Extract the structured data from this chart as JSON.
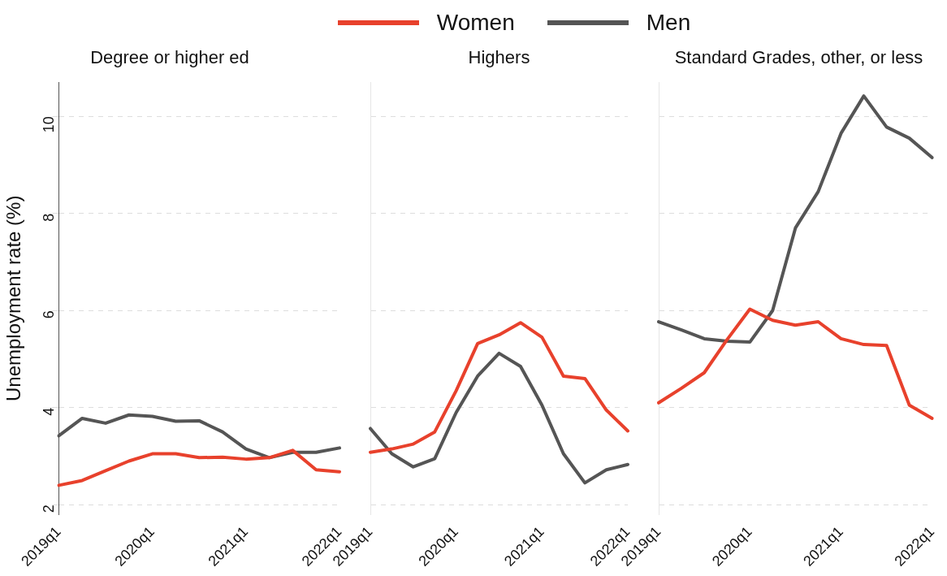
{
  "chart_data": [
    {
      "type": "line",
      "title": "Degree or higher ed",
      "ylabel": "Unemployment rate (%)",
      "categories": [
        "2019q1",
        null,
        null,
        null,
        "2020q1",
        null,
        null,
        null,
        "2021q1",
        null,
        null,
        null,
        "2022q1"
      ],
      "ylim": [
        1.8,
        10.7
      ],
      "yticks": [
        2,
        4,
        6,
        8,
        10
      ],
      "grid": "y",
      "legend": "top",
      "series": [
        {
          "name": "Women",
          "color": "#e8412c",
          "values": [
            2.4,
            2.5,
            2.7,
            2.9,
            3.05,
            3.05,
            2.97,
            2.98,
            2.94,
            2.97,
            3.12,
            2.72,
            2.68
          ]
        },
        {
          "name": "Men",
          "color": "#555555",
          "values": [
            3.42,
            3.78,
            3.68,
            3.85,
            3.82,
            3.72,
            3.73,
            3.5,
            3.15,
            2.97,
            3.08,
            3.08,
            3.17
          ]
        }
      ]
    },
    {
      "type": "line",
      "title": "Highers",
      "categories": [
        "2019q1",
        null,
        null,
        null,
        "2020q1",
        null,
        null,
        null,
        "2021q1",
        null,
        null,
        null,
        "2022q1"
      ],
      "ylim": [
        1.8,
        10.7
      ],
      "yticks": [
        2,
        4,
        6,
        8,
        10
      ],
      "grid": "y",
      "tick_labels": "x",
      "series": [
        {
          "color": "#e8412c",
          "values": [
            3.08,
            3.15,
            3.25,
            3.5,
            4.35,
            5.32,
            5.5,
            5.75,
            5.45,
            4.65,
            4.6,
            3.95,
            3.52
          ]
        },
        {
          "color": "#555555",
          "values": [
            3.57,
            3.05,
            2.78,
            2.95,
            3.9,
            4.65,
            5.12,
            4.85,
            4.05,
            3.05,
            2.45,
            2.72,
            2.83
          ]
        }
      ]
    },
    {
      "type": "line",
      "title": "Standard Grades, other, or less",
      "categories": [
        "2019q1",
        null,
        null,
        null,
        "2020q1",
        null,
        null,
        null,
        "2021q1",
        null,
        null,
        null,
        "2022q1"
      ],
      "ylim": [
        1.8,
        10.7
      ],
      "yticks": [
        2,
        4,
        6,
        8,
        10
      ],
      "grid": "y",
      "tick_labels": "x",
      "series": [
        {
          "color": "#e8412c",
          "values": [
            4.1,
            4.4,
            4.72,
            5.4,
            6.03,
            5.8,
            5.7,
            5.77,
            5.42,
            5.3,
            5.28,
            4.05,
            3.78
          ]
        },
        {
          "color": "#555555",
          "values": [
            5.77,
            5.6,
            5.42,
            5.37,
            5.35,
            6.0,
            7.7,
            8.45,
            9.65,
            10.42,
            9.78,
            9.55,
            9.15
          ]
        }
      ]
    }
  ]
}
